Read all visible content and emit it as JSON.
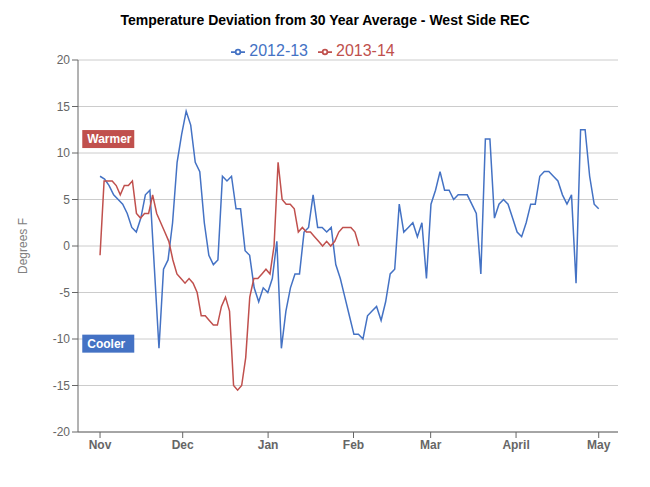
{
  "chart_data": {
    "type": "line",
    "title": "Temperature Deviation from 30 Year Average - West Side REC",
    "ylabel": "Degrees F",
    "xlim": [
      -8,
      188
    ],
    "xticks": [
      {
        "value": 0,
        "label": "Nov"
      },
      {
        "value": 30,
        "label": "Dec"
      },
      {
        "value": 61,
        "label": "Jan"
      },
      {
        "value": 92,
        "label": "Feb"
      },
      {
        "value": 120,
        "label": "Mar"
      },
      {
        "value": 151,
        "label": "April"
      },
      {
        "value": 181,
        "label": "May"
      }
    ],
    "ylim": [
      -20,
      20
    ],
    "yticks": [
      -20,
      -15,
      -10,
      -5,
      0,
      5,
      10,
      15,
      20
    ],
    "grid": true,
    "legend": "top",
    "series": [
      {
        "name": "2012-13",
        "color": "#4472C4",
        "x": [
          0,
          1.6455,
          3.2909,
          4.9364,
          6.5818,
          8.2273,
          9.8727,
          11.5182,
          13.1636,
          14.8091,
          16.4545,
          18.1,
          19.7455,
          21.3909,
          23.0364,
          24.6818,
          26.3273,
          27.9727,
          29.6182,
          31.2636,
          32.9091,
          34.5545,
          36.2,
          37.8455,
          39.4909,
          41.1364,
          42.7818,
          44.4273,
          46.0727,
          47.7182,
          49.3636,
          51.0091,
          52.6545,
          54.3,
          55.9455,
          57.5909,
          59.2364,
          60.8818,
          62.5273,
          64.1727,
          65.8182,
          67.4636,
          69.1091,
          70.7545,
          72.4,
          74.0455,
          75.6909,
          77.3364,
          78.9818,
          80.6273,
          82.2727,
          83.9182,
          85.5636,
          87.2091,
          88.8545,
          90.5,
          92.1455,
          93.7909,
          95.4364,
          97.0818,
          98.7273,
          100.3727,
          102.0182,
          103.6636,
          105.3091,
          106.9545,
          108.6,
          110.2455,
          111.8909,
          113.5364,
          115.1818,
          116.8273,
          118.4727,
          120.1182,
          121.7636,
          123.4091,
          125.0545,
          126.7,
          128.3455,
          129.9909,
          131.6364,
          133.2818,
          134.9273,
          136.5727,
          138.2182,
          139.8636,
          141.5091,
          143.1545,
          144.8,
          146.4455,
          148.0909,
          149.7364,
          151.3818,
          153.0273,
          154.6727,
          156.3182,
          157.9636,
          159.6091,
          161.2545,
          162.9,
          164.5455,
          166.1909,
          167.8364,
          169.4818,
          171.1273,
          172.7727,
          174.4182,
          176.0636,
          177.7091,
          179.3545,
          181
        ],
        "values": [
          7.5,
          7.2,
          6.5,
          5.5,
          5.0,
          4.5,
          3.5,
          2.0,
          1.5,
          3.0,
          5.5,
          6.0,
          -2.5,
          -11.0,
          -2.5,
          -1.5,
          2.5,
          9.0,
          12.0,
          14.5,
          13.0,
          9.0,
          8.0,
          2.5,
          -1.0,
          -2.0,
          -1.5,
          7.5,
          7.0,
          7.5,
          4.0,
          4.0,
          -0.5,
          -1.0,
          -4.5,
          -6.0,
          -4.5,
          -5.0,
          -3.5,
          0.5,
          -11.0,
          -7.0,
          -4.5,
          -3.0,
          -3.0,
          1.5,
          2.0,
          5.5,
          2.0,
          2.0,
          1.5,
          2.0,
          -2.0,
          -3.5,
          -5.5,
          -7.5,
          -9.5,
          -9.5,
          -10.0,
          -7.5,
          -7.0,
          -6.5,
          -8.0,
          -6.0,
          -3.0,
          -2.5,
          4.5,
          1.5,
          2.0,
          2.5,
          1.0,
          2.5,
          -3.5,
          4.5,
          6.0,
          8.0,
          6.0,
          6.0,
          5.0,
          5.5,
          5.5,
          5.5,
          4.5,
          3.5,
          -3.0,
          11.5,
          11.5,
          3.0,
          4.5,
          5.0,
          4.5,
          3.0,
          1.5,
          1.0,
          2.5,
          4.5,
          4.5,
          7.5,
          8.0,
          8.0,
          7.5,
          7.0,
          5.5,
          4.5,
          5.5,
          -4.0,
          12.5,
          12.5,
          7.5,
          4.5,
          4.0
        ]
      },
      {
        "name": "2013-14",
        "color": "#C0504D",
        "x": [
          0,
          1.46875,
          2.9375,
          4.40625,
          5.875,
          7.34375,
          8.8125,
          10.28125,
          11.75,
          13.21875,
          14.6875,
          16.15625,
          17.625,
          19.09375,
          20.5625,
          22.03125,
          23.5,
          24.96875,
          26.4375,
          27.90625,
          29.375,
          30.84375,
          32.3125,
          33.78125,
          35.25,
          36.71875,
          38.1875,
          39.65625,
          41.125,
          42.59375,
          44.0625,
          45.53125,
          47,
          48.46875,
          49.9375,
          51.40625,
          52.875,
          54.34375,
          55.8125,
          57.28125,
          58.75,
          60.21875,
          61.6875,
          63.15625,
          64.625,
          66.09375,
          67.5625,
          69.03125,
          70.5,
          71.96875,
          73.4375,
          74.90625,
          76.375,
          77.84375,
          79.3125,
          80.78125,
          82.25,
          83.71875,
          85.1875,
          86.65625,
          88.125,
          89.59375,
          91.0625,
          92.53125,
          94
        ],
        "values": [
          -1.0,
          7.0,
          7.0,
          7.0,
          6.5,
          5.5,
          6.5,
          6.5,
          7.0,
          3.5,
          3.0,
          3.5,
          3.5,
          5.5,
          3.5,
          2.5,
          1.5,
          0.5,
          -1.5,
          -3.0,
          -3.5,
          -4.0,
          -3.5,
          -4.0,
          -5.0,
          -7.5,
          -7.5,
          -8.0,
          -8.5,
          -8.5,
          -6.5,
          -5.5,
          -7.0,
          -15.0,
          -15.5,
          -15.0,
          -12.0,
          -5.5,
          -3.5,
          -3.5,
          -3.0,
          -2.5,
          -3.0,
          0.0,
          9.0,
          5.0,
          4.5,
          4.5,
          4.0,
          1.5,
          2.0,
          1.5,
          1.5,
          1.0,
          0.5,
          0.0,
          0.5,
          0.0,
          0.5,
          1.5,
          2.0,
          2.0,
          2.0,
          1.5,
          0.0
        ]
      }
    ],
    "annotations": [
      {
        "text": "Warmer",
        "x": -5,
        "y": 11.5,
        "color": "#C0504D"
      },
      {
        "text": "Cooler",
        "x": -5,
        "y": -10.5,
        "color": "#4472C4"
      }
    ]
  }
}
